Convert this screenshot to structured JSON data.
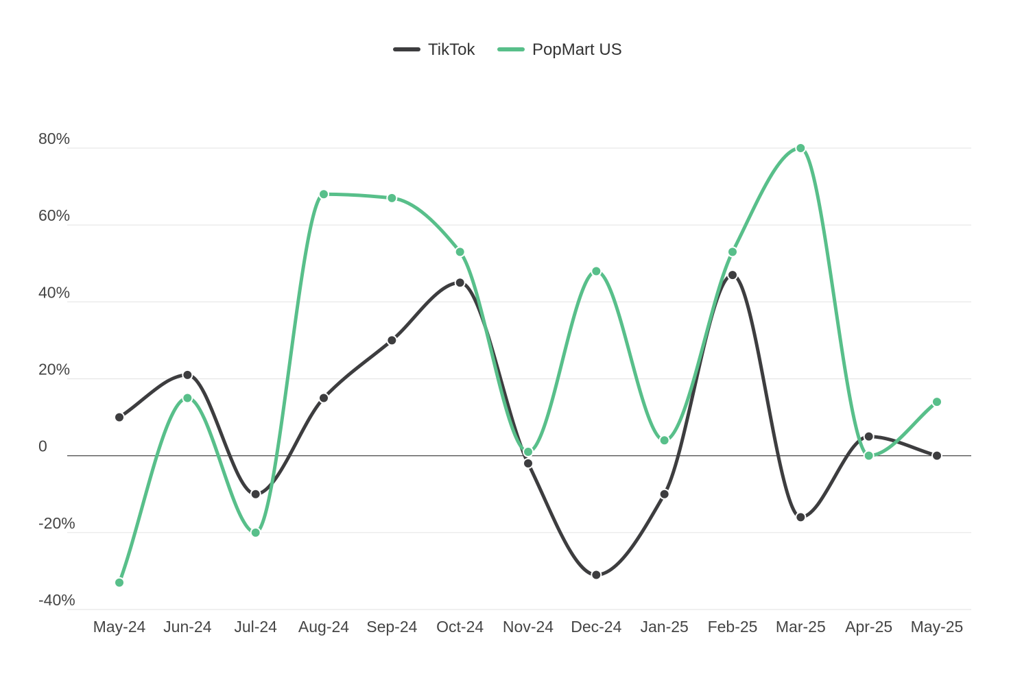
{
  "chart_data": {
    "type": "line",
    "title": "",
    "xlabel": "",
    "ylabel": "",
    "categories": [
      "May-24",
      "Jun-24",
      "Jul-24",
      "Aug-24",
      "Sep-24",
      "Oct-24",
      "Nov-24",
      "Dec-24",
      "Jan-25",
      "Feb-25",
      "Mar-25",
      "Apr-25",
      "May-25"
    ],
    "ylim": [
      -40,
      80
    ],
    "yticks": [
      -40,
      -20,
      0,
      20,
      40,
      60,
      80
    ],
    "ytick_labels": [
      "-40%",
      "-20%",
      "0",
      "20%",
      "40%",
      "60%",
      "80%"
    ],
    "grid": true,
    "legend_position": "top-center",
    "series": [
      {
        "name": "TikTok",
        "color": "#3d3d3f",
        "values": [
          10,
          21,
          -10,
          15,
          30,
          45,
          -2,
          -31,
          -10,
          47,
          -16,
          5,
          0
        ]
      },
      {
        "name": "PopMart US",
        "color": "#58bf8a",
        "values": [
          -33,
          15,
          -20,
          68,
          67,
          53,
          1,
          48,
          4,
          53,
          80,
          0,
          14
        ]
      }
    ]
  }
}
